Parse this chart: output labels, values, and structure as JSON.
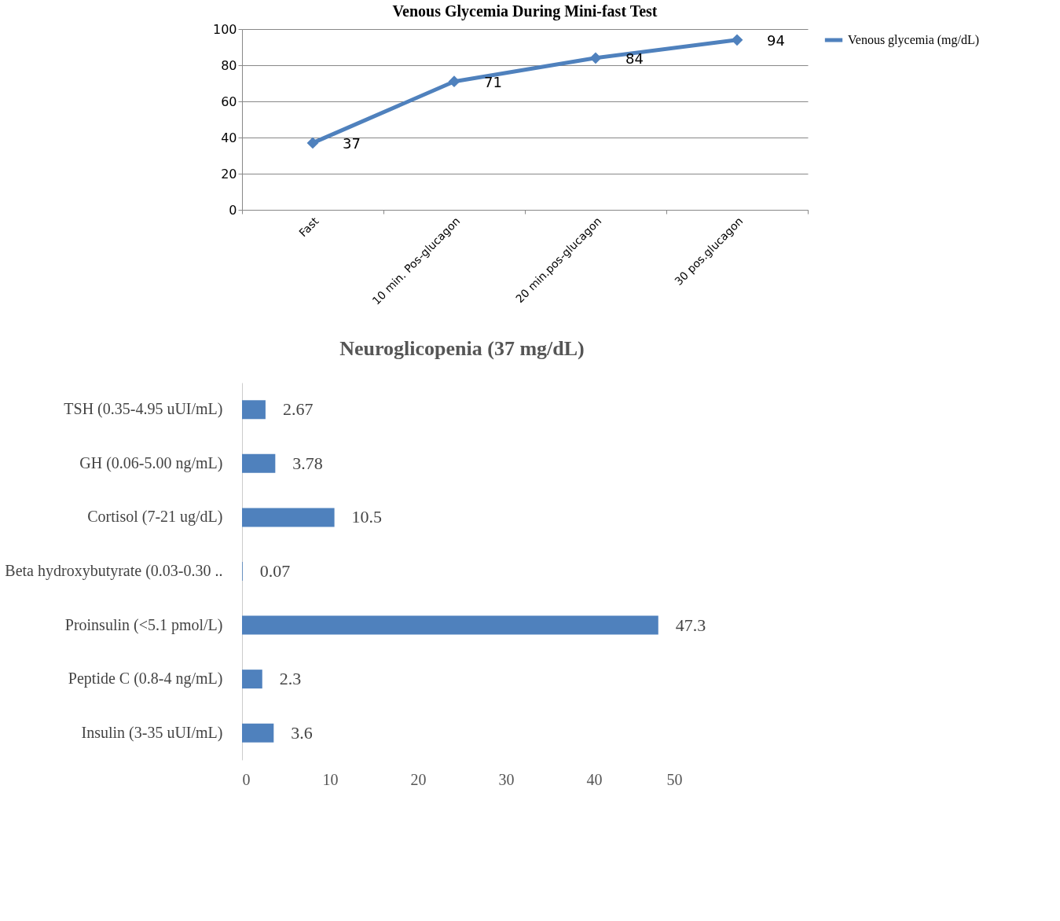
{
  "chart_data": [
    {
      "type": "line",
      "title": "Venous Glycemia During Mini-fast Test",
      "categories": [
        "Fast",
        "10 min. Pos-glucagon",
        "20 min.pos-glucagon",
        "30 pos.glucagon"
      ],
      "series": [
        {
          "name": "Venous glycemia (mg/dL)",
          "color": "#4f81bd",
          "values": [
            37,
            71,
            84,
            94
          ]
        }
      ],
      "ylim": [
        0,
        100
      ],
      "yticks": [
        0,
        20,
        40,
        60,
        80,
        100
      ],
      "grid": "y",
      "legend": "right",
      "marker": "diamond",
      "line_style": "solid",
      "data_labels": true
    },
    {
      "type": "bar",
      "orientation": "horizontal",
      "title": "Neuroglicopenia (37 mg/dL)",
      "categories": [
        "TSH (0.35-4.95 uUI/mL)",
        "GH (0.06-5.00 ng/mL)",
        "Cortisol (7-21 ug/dL)",
        "Beta hydroxybutyrate (0.03-0.30 ..",
        "Proinsulin (<5.1 pmol/L)",
        "Peptide C (0.8-4 ng/mL)",
        "Insulin (3-35 uUI/mL)"
      ],
      "values": [
        2.67,
        3.78,
        10.5,
        0.07,
        47.3,
        2.3,
        3.6
      ],
      "color": "#4f81bd",
      "xlim": [
        0,
        50
      ],
      "xticks": [
        0,
        10,
        20,
        30,
        40,
        50
      ],
      "grid": false,
      "data_labels": true
    }
  ]
}
